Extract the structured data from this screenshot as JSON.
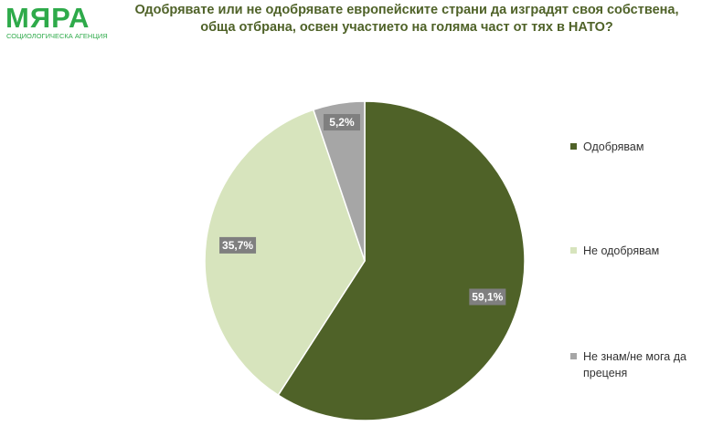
{
  "chart_data": {
    "type": "pie",
    "logo": "МЯРА",
    "logo_subtitle": "СОЦИОЛОГИЧЕСКА АГЕНЦИЯ",
    "title": "Одобрявате или не одобрявате европейските страни да изградят своя собствена, обща отбрана, освен участието на голяма част от тях в НАТО?",
    "categories": [
      "Одобрявам",
      "Не одобрявам",
      "Не знам/не мога да преценя"
    ],
    "values": [
      59.1,
      35.7,
      5.2
    ],
    "value_labels": [
      "59,1%",
      "35,7%",
      "5,2%"
    ],
    "colors": [
      "#4f6228",
      "#d7e4bd",
      "#a6a6a6"
    ],
    "legend": "right"
  }
}
